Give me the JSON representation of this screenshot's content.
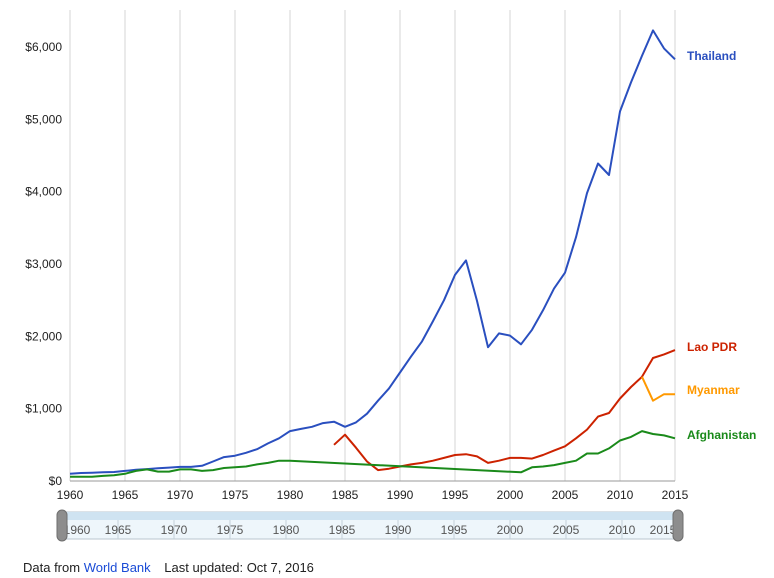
{
  "chart_data": {
    "type": "line",
    "xlim": [
      1960,
      2015
    ],
    "ylim": [
      0,
      6000
    ],
    "x_ticks": [
      1960,
      1965,
      1970,
      1975,
      1980,
      1985,
      1990,
      1995,
      2000,
      2005,
      2010,
      2015
    ],
    "y_ticks": [
      {
        "value": 0,
        "label": "$0"
      },
      {
        "value": 1000,
        "label": "$1,000"
      },
      {
        "value": 2000,
        "label": "$2,000"
      },
      {
        "value": 3000,
        "label": "$3,000"
      },
      {
        "value": 4000,
        "label": "$4,000"
      },
      {
        "value": 5000,
        "label": "$5,000"
      },
      {
        "value": 6000,
        "label": "$6,000"
      }
    ],
    "grid": "vertical",
    "legend": "end-of-line labels",
    "series": [
      {
        "name": "Thailand",
        "color": "#2a4fbf",
        "points": [
          [
            1960,
            100
          ],
          [
            1961,
            110
          ],
          [
            1962,
            115
          ],
          [
            1963,
            120
          ],
          [
            1964,
            125
          ],
          [
            1965,
            140
          ],
          [
            1966,
            155
          ],
          [
            1967,
            165
          ],
          [
            1968,
            175
          ],
          [
            1969,
            185
          ],
          [
            1970,
            195
          ],
          [
            1971,
            195
          ],
          [
            1972,
            210
          ],
          [
            1973,
            270
          ],
          [
            1974,
            330
          ],
          [
            1975,
            350
          ],
          [
            1976,
            390
          ],
          [
            1977,
            440
          ],
          [
            1978,
            520
          ],
          [
            1979,
            590
          ],
          [
            1980,
            690
          ],
          [
            1981,
            720
          ],
          [
            1982,
            750
          ],
          [
            1983,
            800
          ],
          [
            1984,
            820
          ],
          [
            1985,
            750
          ],
          [
            1986,
            810
          ],
          [
            1987,
            930
          ],
          [
            1988,
            1110
          ],
          [
            1989,
            1280
          ],
          [
            1990,
            1500
          ],
          [
            1991,
            1720
          ],
          [
            1992,
            1930
          ],
          [
            1993,
            2210
          ],
          [
            1994,
            2500
          ],
          [
            1995,
            2850
          ],
          [
            1996,
            3050
          ],
          [
            1997,
            2490
          ],
          [
            1998,
            1850
          ],
          [
            1999,
            2040
          ],
          [
            2000,
            2010
          ],
          [
            2001,
            1890
          ],
          [
            2002,
            2090
          ],
          [
            2003,
            2360
          ],
          [
            2004,
            2660
          ],
          [
            2005,
            2880
          ],
          [
            2006,
            3370
          ],
          [
            2007,
            3980
          ],
          [
            2008,
            4390
          ],
          [
            2009,
            4230
          ],
          [
            2010,
            5110
          ],
          [
            2011,
            5510
          ],
          [
            2012,
            5880
          ],
          [
            2013,
            6230
          ],
          [
            2014,
            5980
          ],
          [
            2015,
            5830
          ]
        ]
      },
      {
        "name": "Lao PDR",
        "color": "#cc2200",
        "points": [
          [
            1984,
            500
          ],
          [
            1985,
            640
          ],
          [
            1986,
            460
          ],
          [
            1987,
            270
          ],
          [
            1988,
            150
          ],
          [
            1989,
            170
          ],
          [
            1990,
            200
          ],
          [
            1991,
            230
          ],
          [
            1992,
            250
          ],
          [
            1993,
            280
          ],
          [
            1994,
            320
          ],
          [
            1995,
            360
          ],
          [
            1996,
            370
          ],
          [
            1997,
            340
          ],
          [
            1998,
            250
          ],
          [
            1999,
            280
          ],
          [
            2000,
            320
          ],
          [
            2001,
            320
          ],
          [
            2002,
            310
          ],
          [
            2003,
            360
          ],
          [
            2004,
            420
          ],
          [
            2005,
            480
          ],
          [
            2006,
            590
          ],
          [
            2007,
            710
          ],
          [
            2008,
            890
          ],
          [
            2009,
            940
          ],
          [
            2010,
            1140
          ],
          [
            2011,
            1300
          ],
          [
            2012,
            1440
          ],
          [
            2013,
            1700
          ],
          [
            2014,
            1750
          ],
          [
            2015,
            1810
          ]
        ]
      },
      {
        "name": "Myanmar",
        "color": "#ff9900",
        "points": [
          [
            2012,
            1440
          ],
          [
            2013,
            1110
          ],
          [
            2014,
            1200
          ],
          [
            2015,
            1200
          ]
        ]
      },
      {
        "name": "Afghanistan",
        "color": "#1a8a1a",
        "points": [
          [
            1960,
            60
          ],
          [
            1961,
            60
          ],
          [
            1962,
            60
          ],
          [
            1963,
            70
          ],
          [
            1964,
            80
          ],
          [
            1965,
            100
          ],
          [
            1966,
            140
          ],
          [
            1967,
            160
          ],
          [
            1968,
            130
          ],
          [
            1969,
            130
          ],
          [
            1970,
            160
          ],
          [
            1971,
            160
          ],
          [
            1972,
            140
          ],
          [
            1973,
            150
          ],
          [
            1974,
            180
          ],
          [
            1975,
            190
          ],
          [
            1976,
            200
          ],
          [
            1977,
            230
          ],
          [
            1978,
            250
          ],
          [
            1979,
            280
          ],
          [
            1980,
            280
          ],
          [
            2001,
            120
          ],
          [
            2002,
            190
          ],
          [
            2003,
            200
          ],
          [
            2004,
            220
          ],
          [
            2005,
            250
          ],
          [
            2006,
            280
          ],
          [
            2007,
            380
          ],
          [
            2008,
            380
          ],
          [
            2009,
            450
          ],
          [
            2010,
            560
          ],
          [
            2011,
            610
          ],
          [
            2012,
            690
          ],
          [
            2013,
            650
          ],
          [
            2014,
            630
          ],
          [
            2015,
            590
          ]
        ]
      }
    ]
  },
  "range_slider": {
    "ticks": [
      "1960",
      "1965",
      "1970",
      "1975",
      "1980",
      "1985",
      "1990",
      "1995",
      "2000",
      "2005",
      "2010",
      "2015"
    ]
  },
  "footer": {
    "source_prefix": "Data from",
    "source_link": "World Bank",
    "updated": "Last updated: Oct 7, 2016"
  }
}
